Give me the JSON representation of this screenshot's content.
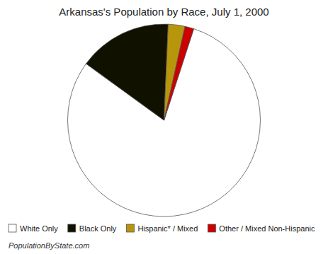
{
  "chart_data": {
    "type": "pie",
    "title": "Arkansas's Population by Race, July 1, 2000",
    "categories": [
      "White Only",
      "Black Only",
      "Hispanic* / Mixed",
      "Other / Mixed Non-Hispanic"
    ],
    "values": [
      80.0,
      15.7,
      2.8,
      1.5
    ],
    "colors": [
      "#ffffff",
      "#111100",
      "#b8960c",
      "#cc0000"
    ],
    "legend": "bottom",
    "annotations": [
      "PopulationByState.com"
    ]
  }
}
